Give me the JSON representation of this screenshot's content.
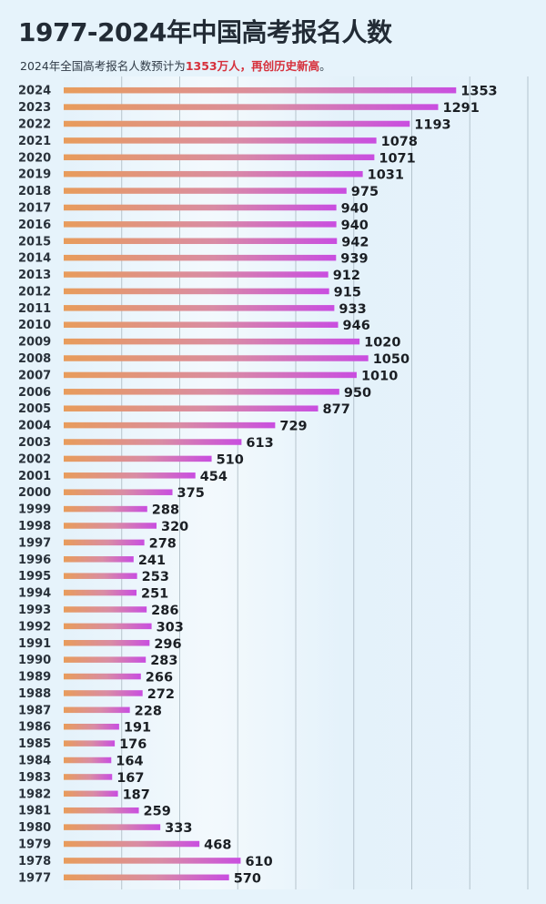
{
  "title": "1977-2024年中国高考报名人数",
  "subtitle": {
    "prefix": "2024年全国高考报名人数预计为",
    "highlight": "1353万人，再创历史新高",
    "suffix": "。"
  },
  "colors": {
    "background": "#e6f3fb",
    "bar_start": "#e89c5b",
    "bar_mid": "#d98ca4",
    "bar_end": "#c94ee0",
    "highlight": "#d6303b",
    "gridline": "#9aaab4"
  },
  "chart_data": {
    "type": "bar",
    "orientation": "horizontal",
    "categories": [
      "2024",
      "2023",
      "2022",
      "2021",
      "2020",
      "2019",
      "2018",
      "2017",
      "2016",
      "2015",
      "2014",
      "2013",
      "2012",
      "2011",
      "2010",
      "2009",
      "2008",
      "2007",
      "2006",
      "2005",
      "2004",
      "2003",
      "2002",
      "2001",
      "2000",
      "1999",
      "1998",
      "1997",
      "1996",
      "1995",
      "1994",
      "1993",
      "1992",
      "1991",
      "1990",
      "1989",
      "1988",
      "1987",
      "1986",
      "1985",
      "1984",
      "1983",
      "1982",
      "1981",
      "1980",
      "1979",
      "1978",
      "1977"
    ],
    "values": [
      1353,
      1291,
      1193,
      1078,
      1071,
      1031,
      975,
      940,
      940,
      942,
      939,
      912,
      915,
      933,
      946,
      1020,
      1050,
      1010,
      950,
      877,
      729,
      613,
      510,
      454,
      375,
      288,
      320,
      278,
      241,
      253,
      251,
      286,
      303,
      296,
      283,
      266,
      272,
      228,
      191,
      176,
      164,
      167,
      187,
      259,
      333,
      468,
      610,
      570
    ],
    "xlim": [
      0,
      1600
    ],
    "grid": true,
    "legend": "none"
  }
}
